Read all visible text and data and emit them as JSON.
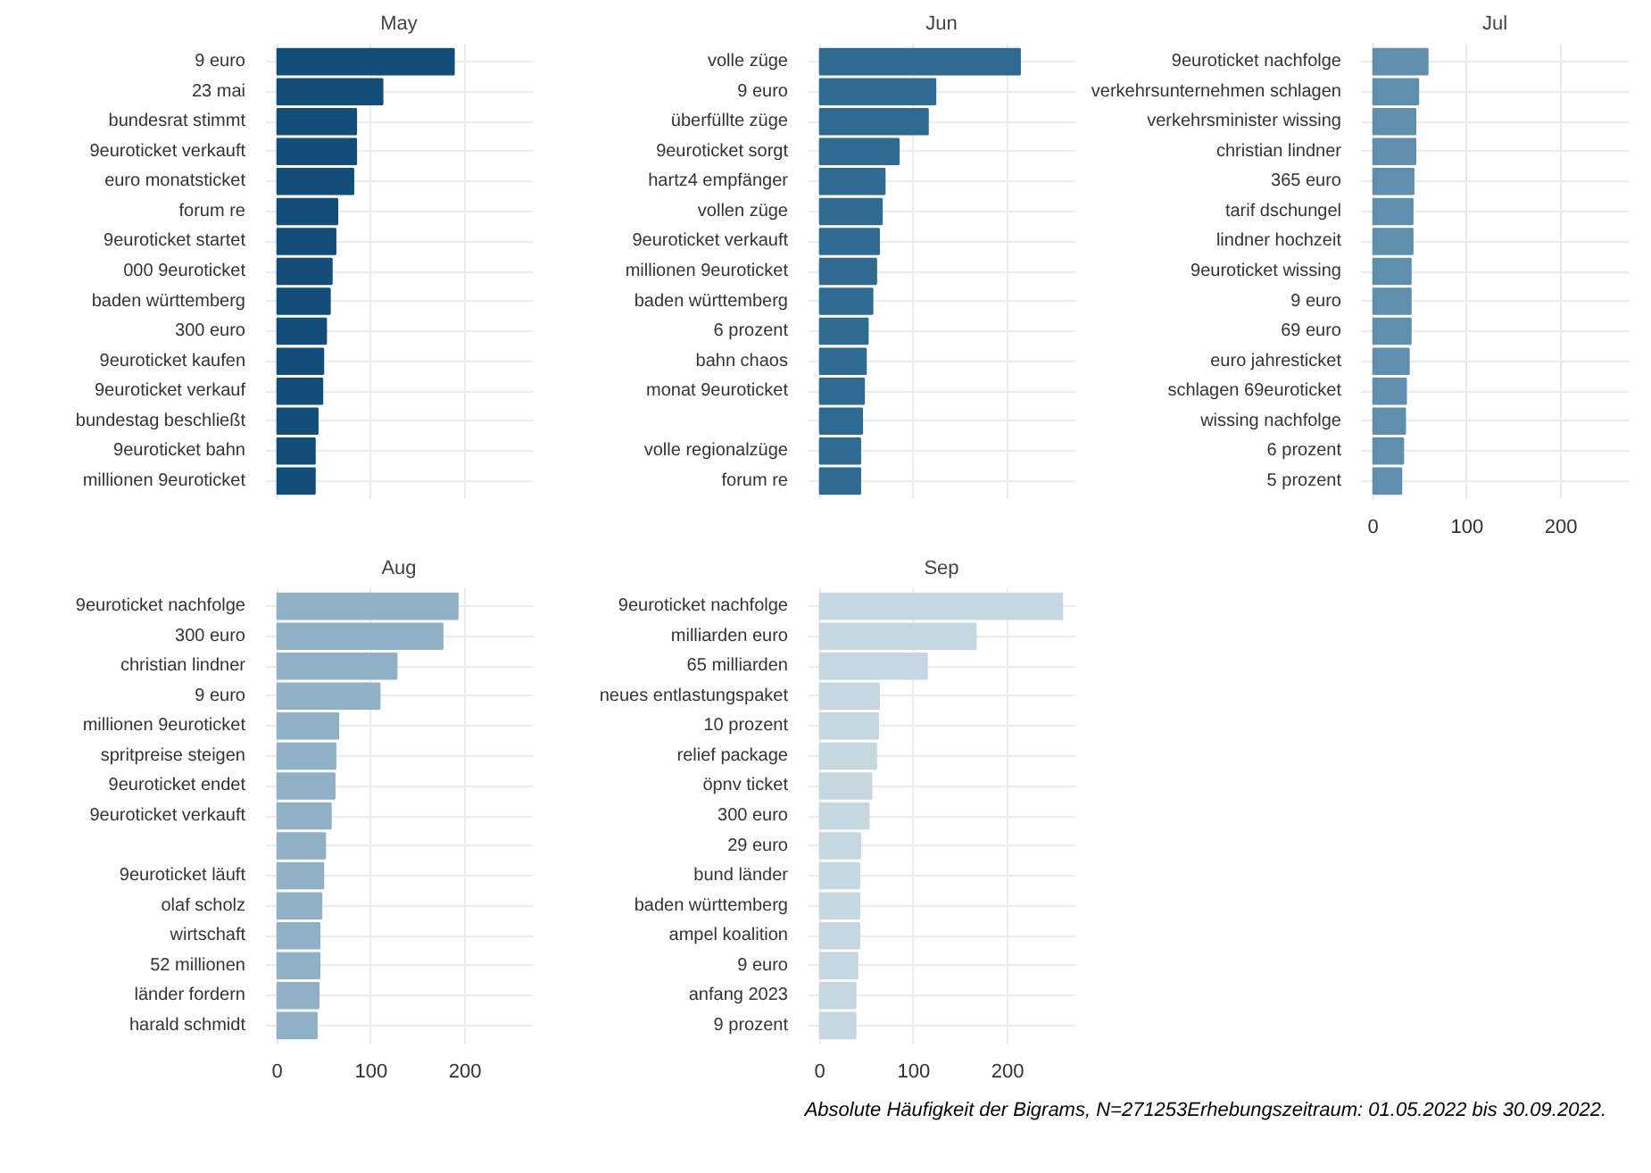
{
  "chart_data": [
    {
      "type": "bar",
      "orientation": "horizontal",
      "title": "May",
      "color": "#124e78",
      "grid": true,
      "tick_labels": "y",
      "xlim": [
        -13,
        272
      ],
      "xticks": [
        0,
        100,
        200
      ],
      "categories": [
        "9 euro",
        "23 mai",
        "bundesrat stimmt",
        "9euroticket verkauft",
        "euro monatsticket",
        "forum re",
        "9euroticket startet",
        "000 9euroticket",
        "baden württemberg",
        "300 euro",
        "9euroticket kaufen",
        "9euroticket verkauf",
        "bundestag beschließt",
        "9euroticket bahn",
        "millionen 9euroticket"
      ],
      "values": [
        188,
        112,
        84,
        84,
        81,
        64,
        62,
        58,
        56,
        52,
        49,
        48,
        43,
        40,
        40
      ]
    },
    {
      "type": "bar",
      "orientation": "horizontal",
      "title": "Jun",
      "color": "#2f6b90",
      "grid": true,
      "tick_labels": "y",
      "xlim": [
        -13,
        272
      ],
      "xticks": [
        0,
        100,
        200
      ],
      "categories": [
        "volle züge",
        "9 euro",
        "überfüllte züge",
        "9euroticket sorgt",
        "hartz4 empfänger",
        "vollen züge",
        "9euroticket verkauft",
        "millionen 9euroticket",
        "baden württemberg",
        "6 prozent",
        "bahn chaos",
        "monat 9euroticket",
        null,
        "volle regionalzüge",
        "forum re"
      ],
      "values": [
        213,
        123,
        115,
        84,
        69,
        66,
        63,
        60,
        56,
        51,
        49,
        47,
        45,
        43,
        43
      ]
    },
    {
      "type": "bar",
      "orientation": "horizontal",
      "title": "Jul",
      "color": "#5f8fad",
      "grid": true,
      "xlim": [
        -13,
        272
      ],
      "xticks": [
        0,
        100,
        200
      ],
      "categories": [
        "9euroticket nachfolge",
        "verkehrsunternehmen schlagen",
        "verkehrsminister wissing",
        "christian lindner",
        "365 euro",
        "tarif dschungel",
        "lindner hochzeit",
        "9euroticket wissing",
        "9 euro",
        "69 euro",
        "euro jahresticket",
        "schlagen 69euroticket",
        "wissing nachfolge",
        "6 prozent",
        "5 prozent"
      ],
      "values": [
        58,
        48,
        45,
        45,
        43,
        42,
        42,
        40,
        40,
        40,
        38,
        35,
        34,
        32,
        30
      ]
    },
    {
      "type": "bar",
      "orientation": "horizontal",
      "title": "Aug",
      "color": "#8fb0c6",
      "grid": true,
      "xlim": [
        -13,
        272
      ],
      "xticks": [
        0,
        100,
        200
      ],
      "categories": [
        "9euroticket nachfolge",
        "300 euro",
        "christian lindner",
        "9 euro",
        "millionen 9euroticket",
        "spritpreise steigen",
        "9euroticket endet",
        "9euroticket verkauft",
        null,
        "9euroticket läuft",
        "olaf scholz",
        "wirtschaft",
        "52 millionen",
        "länder fordern",
        "harald schmidt"
      ],
      "values": [
        192,
        176,
        127,
        109,
        65,
        62,
        61,
        57,
        51,
        49,
        47,
        45,
        45,
        44,
        42
      ]
    },
    {
      "type": "bar",
      "orientation": "horizontal",
      "title": "Sep",
      "color": "#c6d7e2",
      "grid": true,
      "xlim": [
        -13,
        272
      ],
      "xticks": [
        0,
        100,
        200
      ],
      "categories": [
        "9euroticket nachfolge",
        "milliarden euro",
        "65 milliarden",
        "neues entlastungspaket",
        "10 prozent",
        "relief package",
        "öpnv ticket",
        "300 euro",
        "29 euro",
        "bund länder",
        "baden württemberg",
        "ampel koalition",
        "9 euro",
        "anfang 2023",
        "9 prozent"
      ],
      "values": [
        258,
        166,
        114,
        63,
        62,
        60,
        55,
        52,
        43,
        42,
        42,
        42,
        40,
        38,
        38
      ],
      "annotations": [
        "Absolute Häufigkeit der Bigrams, N=271253Erhebungszeitraum: 01.05.2022 bis 30.09.2022."
      ]
    }
  ]
}
